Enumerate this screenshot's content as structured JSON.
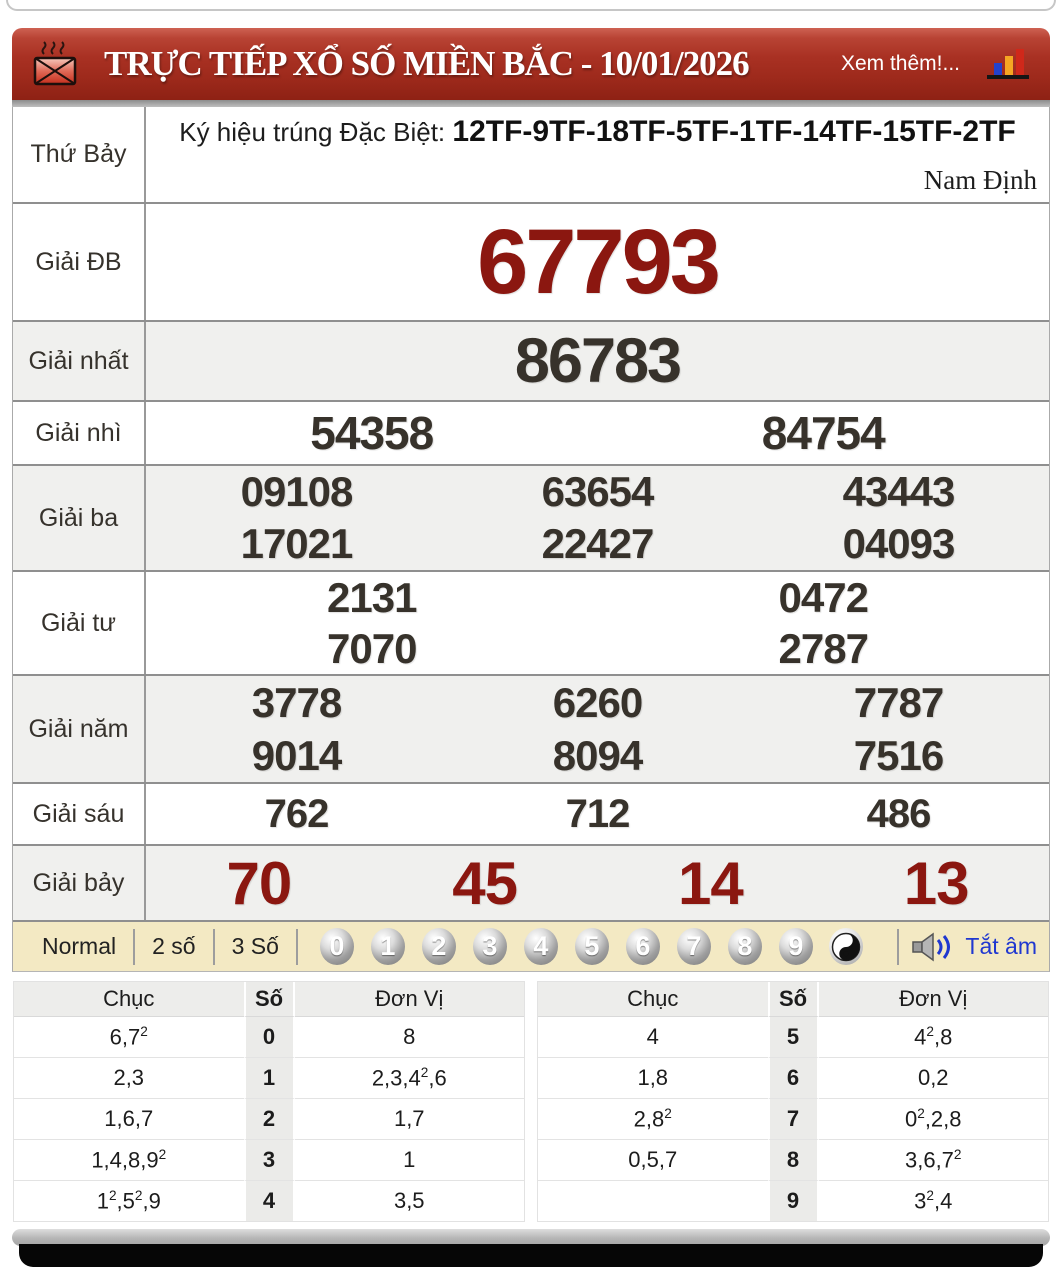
{
  "colors": {
    "header_red": "#a93123",
    "accent_dark_red": "#8b1710",
    "number_ink": "#37322b",
    "control_bar_bg": "#f3e9c3",
    "mute_link_blue": "#2038d0",
    "row_alt_bg": "#f0f0ee"
  },
  "header": {
    "title": "TRỰC TIẾP XỔ SỐ MIỀN BẮC - 10/01/2026",
    "more_label": "Xem thêm!..."
  },
  "results": {
    "day_label": "Thứ Bảy",
    "sign_label": "Ký hiệu trúng Đặc Biệt:",
    "sign_value": "12TF-9TF-18TF-5TF-1TF-14TF-15TF-2TF",
    "province": "Nam Định",
    "prizes": [
      {
        "label": "Giải ĐB",
        "lines": [
          [
            "67793"
          ]
        ]
      },
      {
        "label": "Giải nhất",
        "lines": [
          [
            "86783"
          ]
        ]
      },
      {
        "label": "Giải nhì",
        "lines": [
          [
            "54358",
            "84754"
          ]
        ]
      },
      {
        "label": "Giải ba",
        "lines": [
          [
            "09108",
            "63654",
            "43443"
          ],
          [
            "17021",
            "22427",
            "04093"
          ]
        ]
      },
      {
        "label": "Giải tư",
        "lines": [
          [
            "2131",
            "0472"
          ],
          [
            "7070",
            "2787"
          ]
        ]
      },
      {
        "label": "Giải năm",
        "lines": [
          [
            "3778",
            "6260",
            "7787"
          ],
          [
            "9014",
            "8094",
            "7516"
          ]
        ]
      },
      {
        "label": "Giải sáu",
        "lines": [
          [
            "762",
            "712",
            "486"
          ]
        ]
      },
      {
        "label": "Giải bảy",
        "lines": [
          [
            "70",
            "45",
            "14",
            "13"
          ]
        ]
      }
    ]
  },
  "controls": {
    "modes": [
      "Normal",
      "2 số",
      "3 Số"
    ],
    "digits": [
      "0",
      "1",
      "2",
      "3",
      "4",
      "5",
      "6",
      "7",
      "8",
      "9"
    ],
    "mute_label": "Tắt âm"
  },
  "summary": {
    "headers": [
      "Chục",
      "Số",
      "Đơn Vị"
    ],
    "left_rows": [
      [
        "6,7²",
        "0",
        "8"
      ],
      [
        "2,3",
        "1",
        "2,3,4²,6"
      ],
      [
        "1,6,7",
        "2",
        "1,7"
      ],
      [
        "1,4,8,9²",
        "3",
        "1"
      ],
      [
        "1²,5²,9",
        "4",
        "3,5"
      ]
    ],
    "right_rows": [
      [
        "4",
        "5",
        "4²,8"
      ],
      [
        "1,8",
        "6",
        "0,2"
      ],
      [
        "2,8²",
        "7",
        "0²,2,8"
      ],
      [
        "0,5,7",
        "8",
        "3,6,7²"
      ],
      [
        "",
        "9",
        "3²,4"
      ]
    ]
  }
}
